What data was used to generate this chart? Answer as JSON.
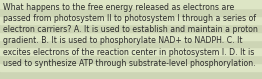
{
  "lines": [
    "What happens to the free energy released as electrons are",
    "passed from photosystem II to photosystem I through a series of",
    "electron carriers? A. It is used to establish and maintain a proton",
    "gradient. B. It is used to phosphorylate NAD+ to NADPH. C. It",
    "excites electrons of the reaction center in photosystem I. D. It is",
    "used to synthesize ATP through substrate-level phosphorylation."
  ],
  "stripe_colors": [
    "#cdd5b5",
    "#dde5c5"
  ],
  "text_color": "#2b2b2b",
  "font_size": 5.55,
  "fig_width": 2.62,
  "fig_height": 0.79,
  "dpi": 100
}
